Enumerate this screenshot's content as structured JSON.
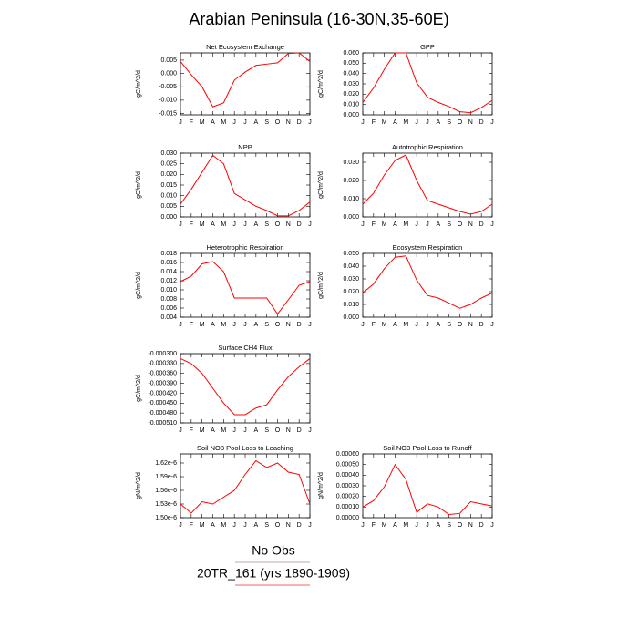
{
  "title": "Arabian Peninsula (16-30N,35-60E)",
  "chart_data": [
    {
      "type": "line",
      "title": "Net Ecosystem Exchange",
      "ylabel": "gC/m^2/d",
      "color": "#ff0000",
      "categories": [
        "J",
        "F",
        "M",
        "A",
        "M",
        "J",
        "J",
        "A",
        "S",
        "O",
        "N",
        "D",
        "J"
      ],
      "values": [
        0.0045,
        -0.0005,
        -0.005,
        -0.0125,
        -0.011,
        -0.0025,
        0.0005,
        0.003,
        0.0035,
        0.004,
        0.0075,
        0.0077,
        0.0045
      ],
      "ylim": [
        -0.0155,
        0.0077
      ],
      "yticks": [
        0.005,
        {
          "value": 0,
          "label": "0.000"
        },
        -0.005,
        {
          "value": -0.01,
          "label": "-0.010"
        },
        -0.015
      ]
    },
    {
      "type": "line",
      "title": "GPP",
      "ylabel": "gC/m^2/d",
      "color": "#ff0000",
      "categories": [
        "J",
        "F",
        "M",
        "A",
        "M",
        "J",
        "J",
        "A",
        "S",
        "O",
        "N",
        "D",
        "J"
      ],
      "values": [
        0.012,
        0.026,
        0.044,
        0.06,
        0.06,
        0.031,
        0.017,
        0.012,
        0.008,
        0.003,
        0.002,
        0.007,
        0.014
      ],
      "ylim": [
        0,
        0.06
      ],
      "yticks": [
        {
          "value": 0,
          "label": "0.000"
        },
        {
          "value": 0.01,
          "label": "0.010"
        },
        {
          "value": 0.02,
          "label": "0.020"
        },
        {
          "value": 0.03,
          "label": "0.030"
        },
        {
          "value": 0.04,
          "label": "0.040"
        },
        {
          "value": 0.05,
          "label": "0.050"
        },
        {
          "value": 0.06,
          "label": "0.060"
        }
      ]
    },
    {
      "type": "line",
      "title": "NPP",
      "ylabel": "gC/m^2/d",
      "color": "#ff0000",
      "categories": [
        "J",
        "F",
        "M",
        "A",
        "M",
        "J",
        "J",
        "A",
        "S",
        "O",
        "N",
        "D",
        "J"
      ],
      "values": [
        0.006,
        0.013,
        0.021,
        0.029,
        0.025,
        0.011,
        0.008,
        0.005,
        0.003,
        0.0005,
        0.0005,
        0.003,
        0.007
      ],
      "ylim": [
        0,
        0.03
      ],
      "yticks": [
        {
          "value": 0,
          "label": "0.000"
        },
        0.005,
        {
          "value": 0.01,
          "label": "0.010"
        },
        0.015,
        {
          "value": 0.02,
          "label": "0.020"
        },
        0.025,
        {
          "value": 0.03,
          "label": "0.030"
        }
      ]
    },
    {
      "type": "line",
      "title": "Autotrophic Respiration",
      "ylabel": "gC/m^2/d",
      "color": "#ff0000",
      "categories": [
        "J",
        "F",
        "M",
        "A",
        "M",
        "J",
        "J",
        "A",
        "S",
        "O",
        "N",
        "D",
        "J"
      ],
      "values": [
        0.007,
        0.013,
        0.023,
        0.031,
        0.034,
        0.02,
        0.009,
        0.007,
        0.005,
        0.003,
        0.0015,
        0.003,
        0.007
      ],
      "ylim": [
        0,
        0.035
      ],
      "yticks": [
        {
          "value": 0,
          "label": "0.000"
        },
        {
          "value": 0.01,
          "label": "0.010"
        },
        {
          "value": 0.02,
          "label": "0.020"
        },
        {
          "value": 0.03,
          "label": "0.030"
        }
      ]
    },
    {
      "type": "line",
      "title": "Heterotrophic Respiration",
      "ylabel": "gC/m^2/d",
      "color": "#ff0000",
      "categories": [
        "J",
        "F",
        "M",
        "A",
        "M",
        "J",
        "J",
        "A",
        "S",
        "O",
        "N",
        "D",
        "J"
      ],
      "values": [
        0.0118,
        0.013,
        0.0157,
        0.0162,
        0.014,
        0.0082,
        0.0082,
        0.0082,
        0.0082,
        0.0047,
        0.0078,
        0.011,
        0.0118
      ],
      "ylim": [
        0.004,
        0.018
      ],
      "yticks": [
        0.004,
        0.006,
        0.008,
        {
          "value": 0.01,
          "label": "0.010"
        },
        0.012,
        0.014,
        0.016,
        0.018
      ]
    },
    {
      "type": "line",
      "title": "Ecosystem Respiration",
      "ylabel": "gC/m^2/d",
      "color": "#ff0000",
      "categories": [
        "J",
        "F",
        "M",
        "A",
        "M",
        "J",
        "J",
        "A",
        "S",
        "O",
        "N",
        "D",
        "J"
      ],
      "values": [
        0.019,
        0.026,
        0.038,
        0.047,
        0.048,
        0.029,
        0.017,
        0.015,
        0.011,
        0.007,
        0.01,
        0.015,
        0.019
      ],
      "ylim": [
        0,
        0.05
      ],
      "yticks": [
        {
          "value": 0,
          "label": "0.000"
        },
        {
          "value": 0.01,
          "label": "0.010"
        },
        {
          "value": 0.02,
          "label": "0.020"
        },
        {
          "value": 0.03,
          "label": "0.030"
        },
        {
          "value": 0.04,
          "label": "0.040"
        },
        {
          "value": 0.05,
          "label": "0.050"
        }
      ]
    },
    {
      "type": "line",
      "title": "Surface CH4 Flux",
      "ylabel": "gC/m^2/d",
      "color": "#ff0000",
      "categories": [
        "J",
        "F",
        "M",
        "A",
        "M",
        "J",
        "J",
        "A",
        "S",
        "O",
        "N",
        "D",
        "J"
      ],
      "values": [
        -0.000315,
        -0.00033,
        -0.00036,
        -0.000405,
        -0.00045,
        -0.000485,
        -0.000485,
        -0.000465,
        -0.000455,
        -0.00041,
        -0.00037,
        -0.00034,
        -0.000315
      ],
      "ylim": [
        -0.00051,
        -0.0003
      ],
      "yticks": [
        {
          "value": -0.0003,
          "label": "-0.000300"
        },
        {
          "value": -0.00033,
          "label": "-0.000330"
        },
        {
          "value": -0.00036,
          "label": "-0.000360"
        },
        {
          "value": -0.00039,
          "label": "-0.000390"
        },
        {
          "value": -0.00042,
          "label": "-0.000420"
        },
        {
          "value": -0.00045,
          "label": "-0.000450"
        },
        {
          "value": -0.00048,
          "label": "-0.000480"
        },
        {
          "value": -0.00051,
          "label": "-0.000510"
        }
      ]
    },
    {
      "type": "line",
      "title": "Soil NO3 Pool Loss to Leaching",
      "ylabel": "gN/m^2/d",
      "color": "#ff0000",
      "categories": [
        "J",
        "F",
        "M",
        "A",
        "M",
        "J",
        "J",
        "A",
        "S",
        "O",
        "N",
        "D",
        "J"
      ],
      "values": [
        1.53e-06,
        1.51e-06,
        1.535e-06,
        1.53e-06,
        1.545e-06,
        1.56e-06,
        1.595e-06,
        1.625e-06,
        1.61e-06,
        1.62e-06,
        1.6e-06,
        1.595e-06,
        1.53e-06
      ],
      "ylim": [
        1.5e-06,
        1.64e-06
      ],
      "yticks": [
        {
          "value": 1.5e-06,
          "label": "1.50e-6"
        },
        {
          "value": 1.53e-06,
          "label": "1.53e-6"
        },
        {
          "value": 1.56e-06,
          "label": "1.56e-6"
        },
        {
          "value": 1.59e-06,
          "label": "1.59e-6"
        },
        {
          "value": 1.62e-06,
          "label": "1.62e-6"
        }
      ]
    },
    {
      "type": "line",
      "title": "Soil NO3 Pool Loss to Runoff",
      "ylabel": "gN/m^2/d",
      "color": "#ff0000",
      "categories": [
        "J",
        "F",
        "M",
        "A",
        "M",
        "J",
        "J",
        "A",
        "S",
        "O",
        "N",
        "D",
        "J"
      ],
      "values": [
        0.0001,
        0.00016,
        0.00029,
        0.0005,
        0.00036,
        5e-05,
        0.00013,
        0.0001,
        3e-05,
        4e-05,
        0.00015,
        0.00013,
        0.00011
      ],
      "ylim": [
        0,
        0.0006
      ],
      "yticks": [
        {
          "value": 0,
          "label": "0.00000"
        },
        {
          "value": 0.0001,
          "label": "0.00010"
        },
        {
          "value": 0.0002,
          "label": "0.00020"
        },
        {
          "value": 0.0003,
          "label": "0.00030"
        },
        {
          "value": 0.0004,
          "label": "0.00040"
        },
        {
          "value": 0.0005,
          "label": "0.00050"
        },
        {
          "value": 0.0006,
          "label": "0.00060"
        }
      ]
    }
  ],
  "legend": [
    {
      "name": "No Obs",
      "color": "#c8a0b4"
    },
    {
      "name": "20TR_161 (yrs 1890-1909)",
      "color": "#ff6060"
    }
  ]
}
